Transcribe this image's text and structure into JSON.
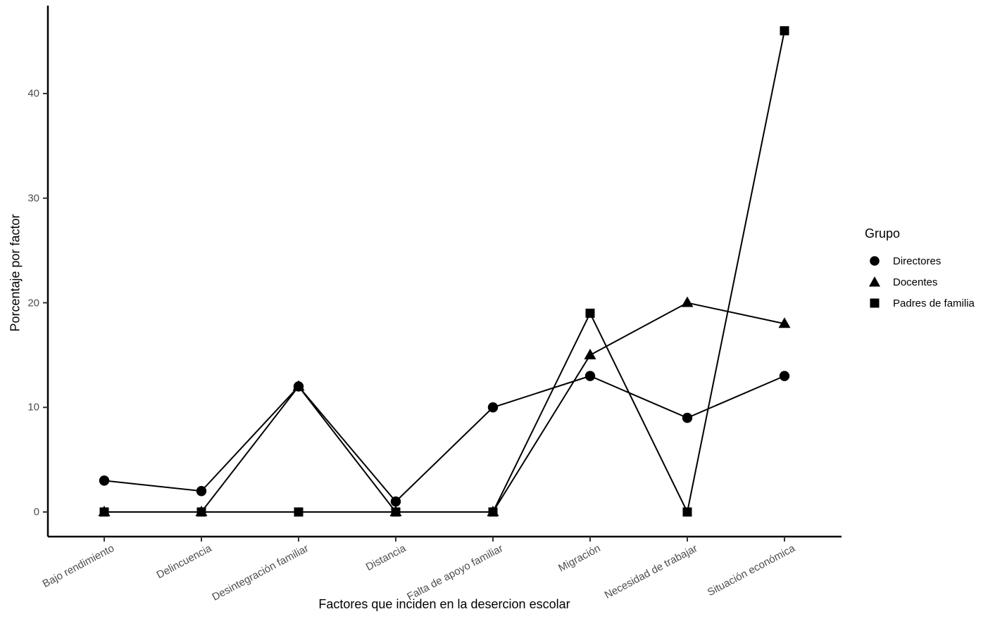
{
  "chart_data": {
    "type": "line",
    "title": "",
    "xlabel": "Factores que inciden en la desercion escolar",
    "ylabel": "Porcentaje por factor",
    "categories": [
      "Bajo rendimiento",
      "Delincuencia",
      "Desintegración familiar",
      "Distancia",
      "Falta de apoyo familiar",
      "Migración",
      "Necesidad de trabajar",
      "Situación económica"
    ],
    "series": [
      {
        "name": "Directores",
        "marker": "circle",
        "values": [
          3,
          2,
          12,
          1,
          10,
          13,
          9,
          13
        ]
      },
      {
        "name": "Docentes",
        "marker": "triangle",
        "values": [
          0,
          0,
          12,
          0,
          0,
          15,
          20,
          18
        ]
      },
      {
        "name": "Padres de familia",
        "marker": "square",
        "values": [
          0,
          0,
          0,
          0,
          0,
          19,
          0,
          46
        ]
      }
    ],
    "yticks": [
      0,
      10,
      20,
      30,
      40
    ],
    "ylim": [
      0,
      46
    ],
    "grid": false,
    "legend": {
      "title": "Grupo",
      "position": "right"
    },
    "colors": {
      "series": "#000000",
      "axis": "#000000",
      "tick_label": "#4d4d4d",
      "background": "#ffffff"
    }
  }
}
